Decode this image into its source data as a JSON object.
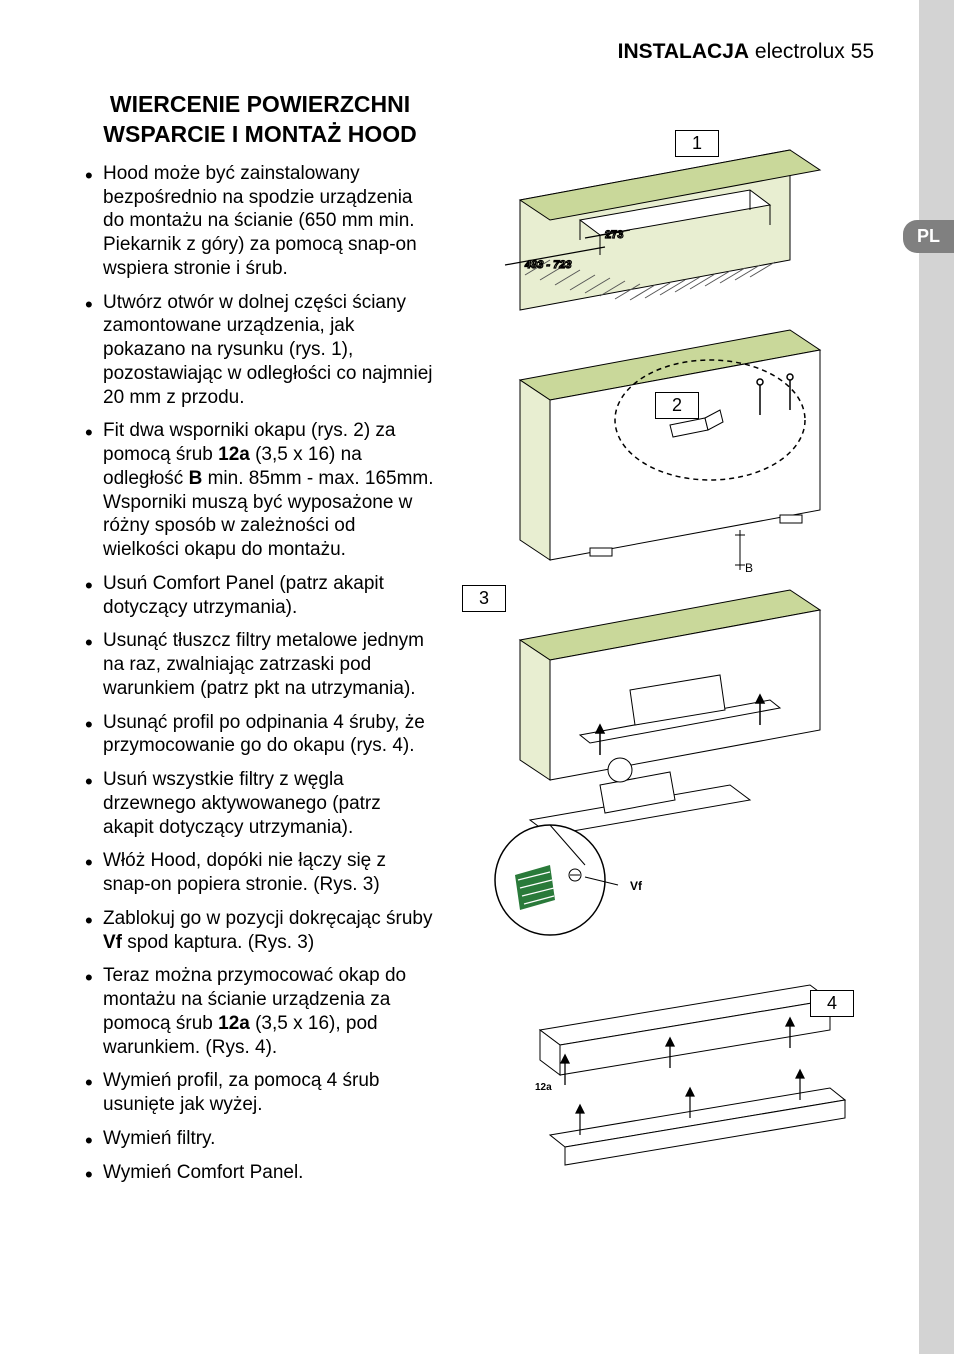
{
  "header": {
    "section": "INSTALACJA",
    "brand": "electrolux",
    "page": "55"
  },
  "language_tab": "PL",
  "title_line1": "WIERCENIE POWIERZCHNI",
  "title_line2": "WSPARCIE I MONTAŻ HOOD",
  "bullets": [
    {
      "parts": [
        {
          "t": "Hood może być zainstalowany bezpośrednio na spodzie urządzenia do montażu na ścianie (650 mm min. Piekarnik z góry) za pomocą snap-on wspiera stronie i śrub."
        }
      ]
    },
    {
      "parts": [
        {
          "t": "Utwórz otwór w dolnej części ściany zamontowane urządzenia, jak pokazano na rysunku (rys. 1), pozostawiając w odległości co najmniej 20 mm z przodu."
        }
      ]
    },
    {
      "parts": [
        {
          "t": "Fit dwa wsporniki okapu (rys. 2) za pomocą śrub "
        },
        {
          "t": "12a",
          "b": true
        },
        {
          "t": " (3,5 x 16) na odległość "
        },
        {
          "t": "B",
          "b": true
        },
        {
          "t": " min. 85mm - max. 165mm. Wsporniki muszą być wyposażone w różny sposób w zależności od wielkości okapu do montażu."
        }
      ]
    },
    {
      "parts": [
        {
          "t": "Usuń Comfort Panel (patrz akapit dotyczący utrzymania)."
        }
      ]
    },
    {
      "parts": [
        {
          "t": "Usunąć tłuszcz filtry metalowe jednym na raz, zwalniając zatrzaski pod warunkiem (patrz pkt na utrzymania)."
        }
      ]
    },
    {
      "parts": [
        {
          "t": "Usunąć profil po odpinania 4 śruby, że przymocowanie go do okapu (rys. 4)."
        }
      ]
    },
    {
      "parts": [
        {
          "t": "Usuń wszystkie filtry z węgla drzewnego aktywowanego (patrz akapit dotyczący utrzymania)."
        }
      ]
    },
    {
      "parts": [
        {
          "t": "Włóż Hood, dopóki nie łączy się z snap-on popiera stronie. (Rys. 3)"
        }
      ]
    },
    {
      "parts": [
        {
          "t": "Zablokuj go w pozycji dokręcając śruby "
        },
        {
          "t": "Vf",
          "b": true
        },
        {
          "t": " spod kaptura. (Rys. 3)"
        }
      ]
    },
    {
      "parts": [
        {
          "t": "Teraz można przymocować okap do montażu na ścianie urządzenia za pomocą śrub "
        },
        {
          "t": "12a",
          "b": true
        },
        {
          "t": " (3,5 x 16), pod warunkiem. (Rys. 4)."
        }
      ]
    },
    {
      "parts": [
        {
          "t": "Wymień profil, za pomocą 4 śrub usunięte jak wyżej."
        }
      ]
    },
    {
      "parts": [
        {
          "t": "Wymień filtry."
        }
      ]
    },
    {
      "parts": [
        {
          "t": "Wymień Comfort Panel."
        }
      ]
    }
  ],
  "diagram": {
    "fig_labels": [
      "1",
      "2",
      "3",
      "4"
    ],
    "dim_inner": "273",
    "dim_outer": "493 - 723",
    "label_B": "B",
    "label_Vf": "Vf",
    "label_12a": "12a",
    "colors": {
      "cabinet_fill": "#c9d89a",
      "wall_fill": "#e8eed1",
      "stroke": "#000000",
      "hatch": "#555555",
      "accent": "#2a7a3a"
    }
  }
}
